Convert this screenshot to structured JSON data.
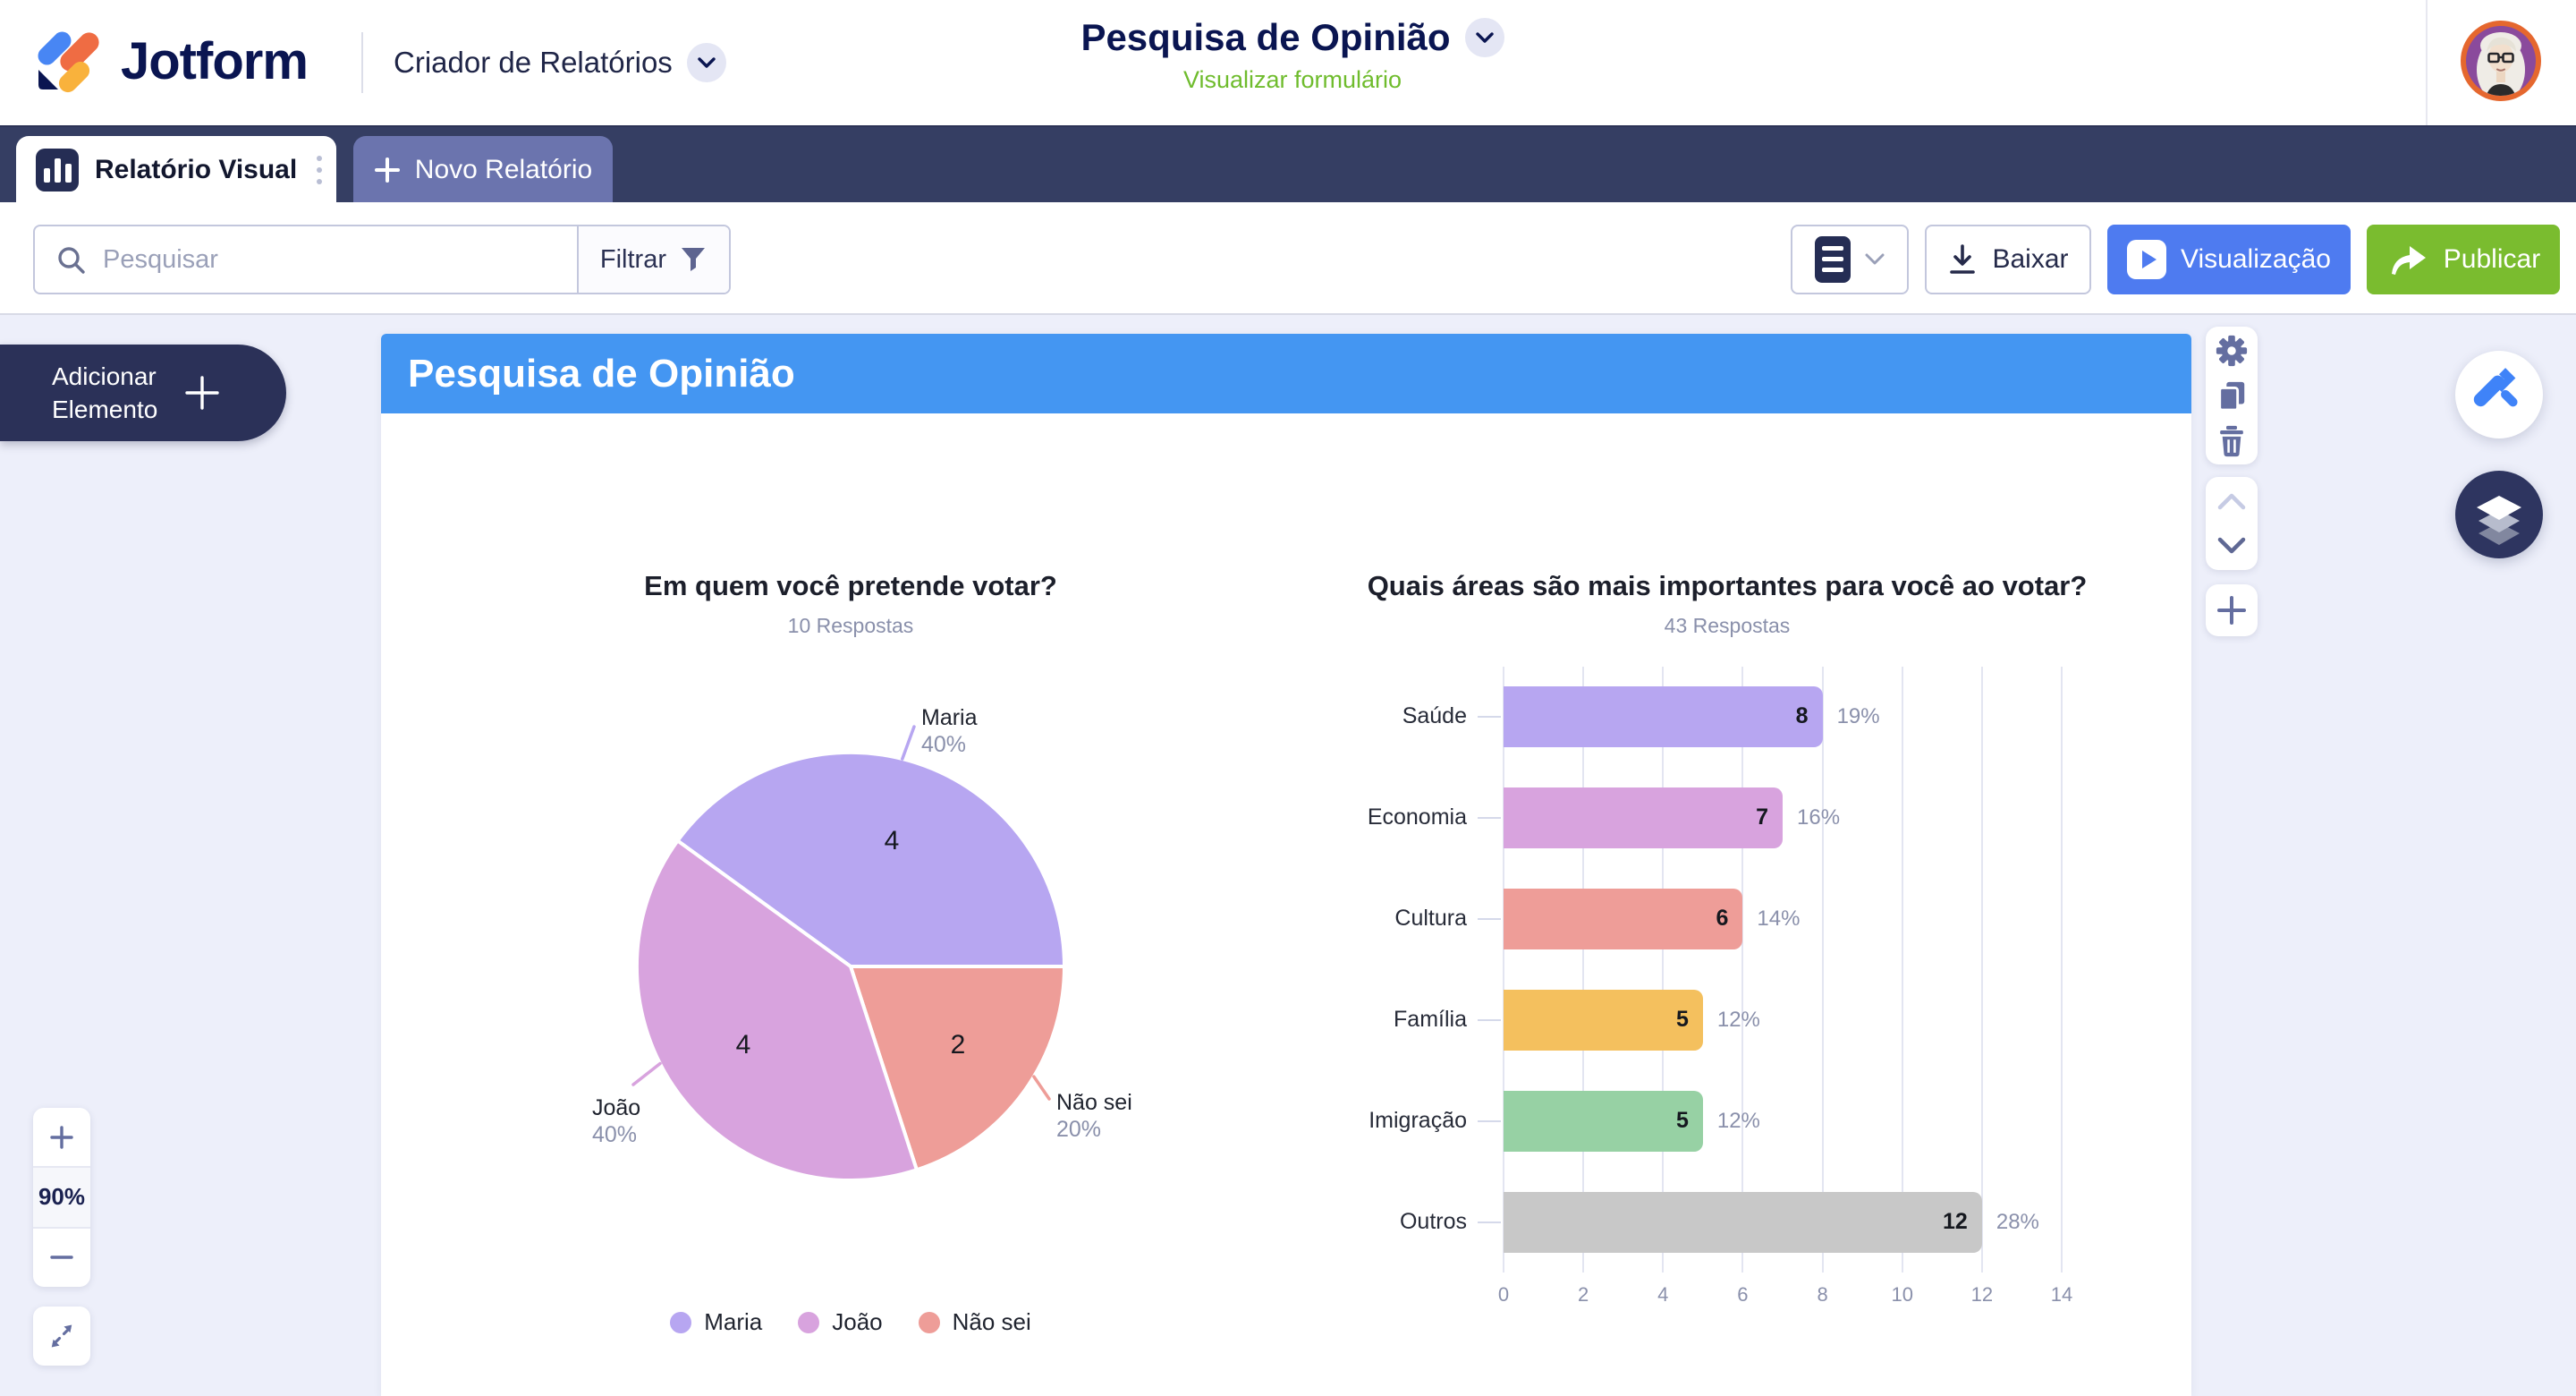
{
  "header": {
    "brand": "Jotform",
    "product": "Criador de Relatórios",
    "form_title": "Pesquisa de Opinião",
    "view_form_link": "Visualizar formulário"
  },
  "tabs": {
    "active_tab": "Relatório Visual",
    "new_report": "Novo Relatório",
    "new_report_plus": "+"
  },
  "toolbar": {
    "search_placeholder": "Pesquisar",
    "filter_label": "Filtrar",
    "download_label": "Baixar",
    "preview_label": "Visualização",
    "publish_label": "Publicar"
  },
  "canvas": {
    "add_element_line1": "Adicionar",
    "add_element_line2": "Elemento",
    "report_title": "Pesquisa de Opinião",
    "zoom_level": "90%"
  },
  "icons": {
    "search": "magnifier",
    "filter": "funnel",
    "download": "arrow-down-to-line",
    "preview": "play-square",
    "publish": "share-arrow",
    "settings": "gear",
    "duplicate": "copy-pages",
    "delete": "trash",
    "move_up": "chevron-up",
    "move_down": "chevron-down",
    "add": "plus",
    "design": "paint-roller",
    "layers": "stacked-layers",
    "expand": "diagonal-arrows"
  },
  "chart_data": [
    {
      "type": "pie",
      "title": "Em quem você pretende votar?",
      "subtitle": "10 Respostas",
      "labels": [
        "Maria",
        "João",
        "Não sei"
      ],
      "values": [
        4,
        4,
        2
      ],
      "percents": [
        "40%",
        "40%",
        "20%"
      ],
      "colors": [
        "#b7a6f1",
        "#d8a3de",
        "#ee9d98"
      ],
      "start_angle_deg": -54,
      "legend": [
        "Maria",
        "João",
        "Não sei"
      ],
      "legend_position": "bottom"
    },
    {
      "type": "bar",
      "orientation": "horizontal",
      "title": "Quais áreas são mais importantes para você ao votar?",
      "subtitle": "43 Respostas",
      "categories": [
        "Saúde",
        "Economia",
        "Cultura",
        "Família",
        "Imigração",
        "Outros"
      ],
      "values": [
        8,
        7,
        6,
        5,
        5,
        12
      ],
      "percents": [
        "19%",
        "16%",
        "14%",
        "12%",
        "12%",
        "28%"
      ],
      "colors": [
        "#b7a6f1",
        "#d8a3de",
        "#ee9d98",
        "#f4c05e",
        "#97d1a4",
        "#c8c8c8"
      ],
      "xlim": [
        0,
        14
      ],
      "x_ticks": [
        0,
        2,
        4,
        6,
        8,
        10,
        12,
        14
      ],
      "grid": true
    }
  ]
}
